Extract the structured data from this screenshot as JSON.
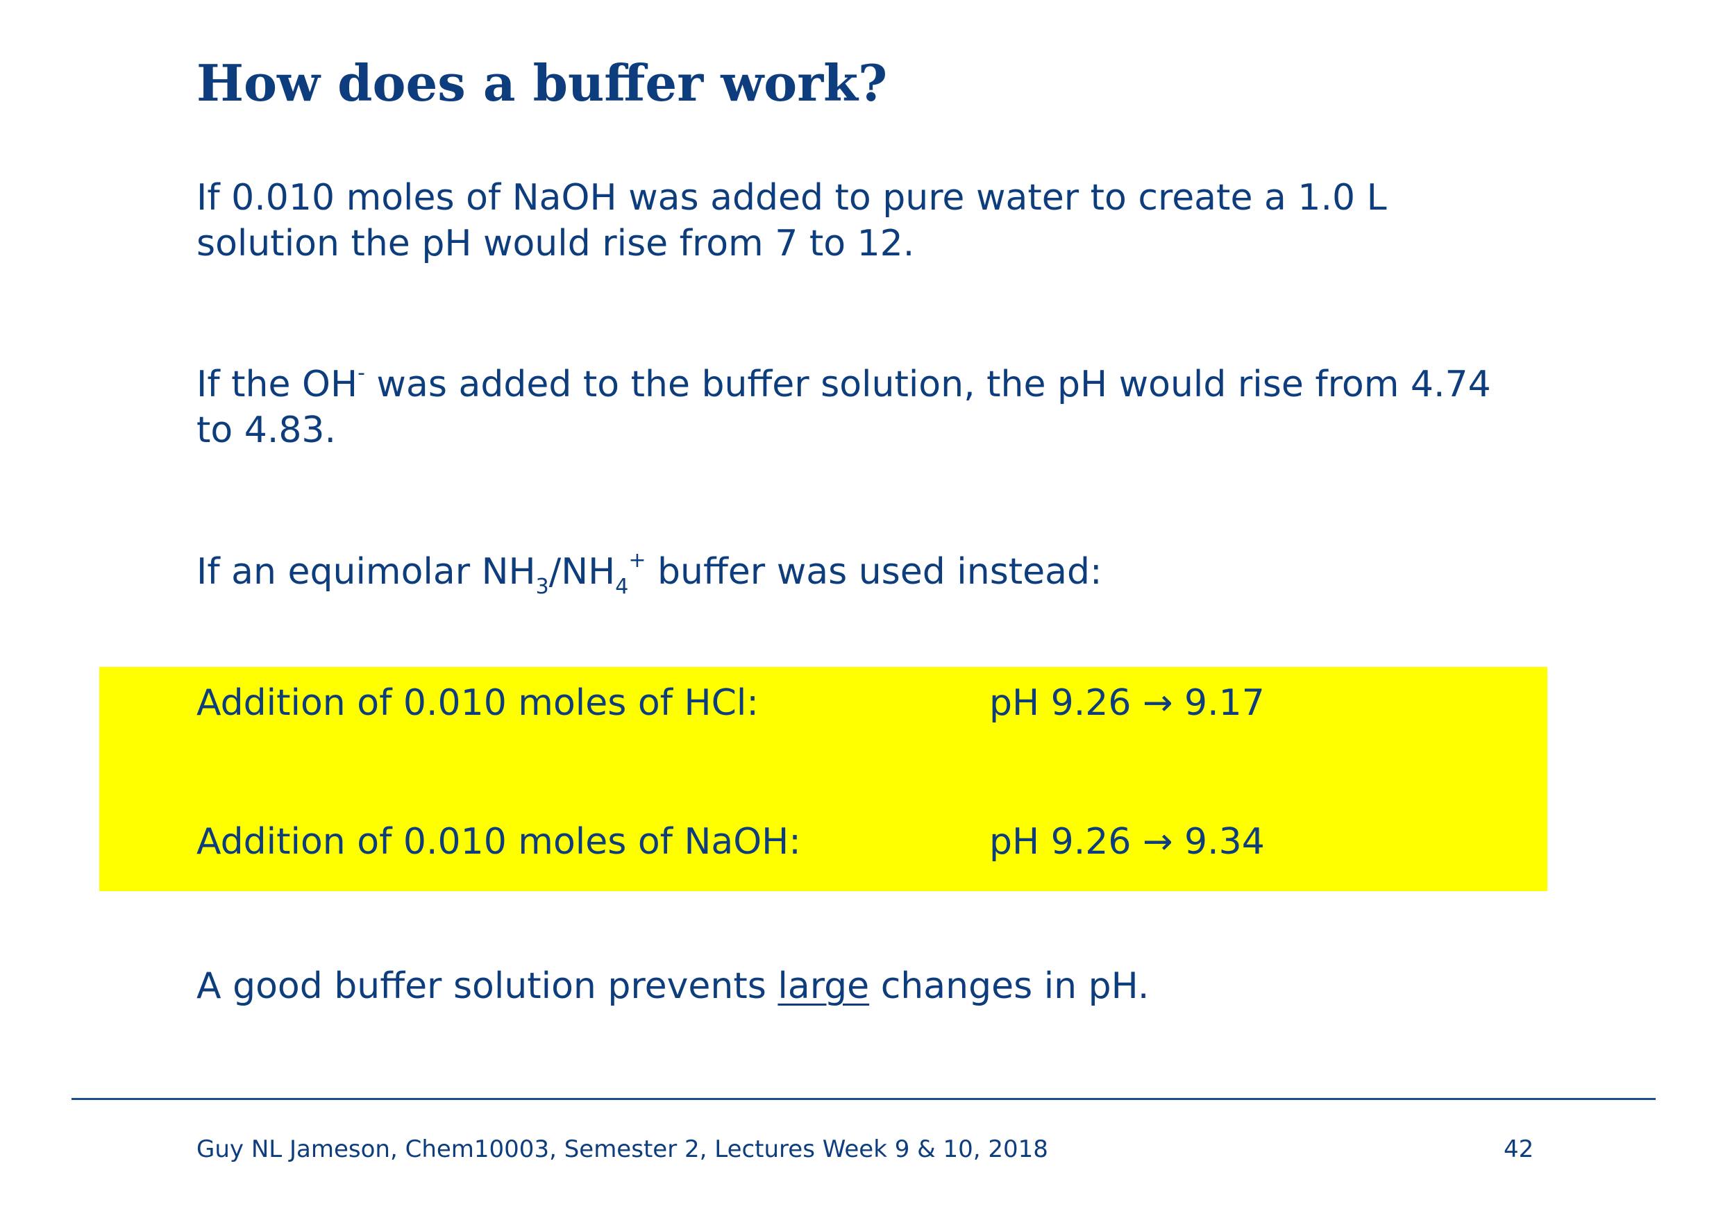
{
  "title": "How does a buffer work?",
  "paragraphs": {
    "p1_line1": "If 0.010 moles of NaOH was added to pure water to create  a 1.0 L",
    "p1_line2": "solution the pH would rise from 7 to 12.",
    "p2_pre": "If the OH",
    "p2_sup": "-",
    "p2_post_line1": " was added to the buffer solution, the pH would rise from 4.74",
    "p2_line2": "to 4.83.",
    "p3_pre": "If an equimolar NH",
    "p3_sub1": "3",
    "p3_mid": "/NH",
    "p3_sub2": "4",
    "p3_sup": "+",
    "p3_post": " buffer was used instead:"
  },
  "highlight": {
    "rows": [
      {
        "label": "Addition of 0.010 moles of HCl:",
        "value": "pH 9.26 → 9.17"
      },
      {
        "label": "Addition of 0.010 moles of NaOH:",
        "value": "pH 9.26 → 9.34"
      }
    ],
    "background": "#ffff00"
  },
  "conclusion": {
    "pre": "A good buffer solution prevents ",
    "underlined": "large",
    "post": " changes in pH."
  },
  "footer": {
    "credit": "Guy NL Jameson, Chem10003, Semester 2, Lectures Week 9 & 10, 2018",
    "page_number": "42"
  },
  "colors": {
    "text": "#0d3d7d",
    "rule": "#1b4b93",
    "highlight": "#ffff00"
  }
}
